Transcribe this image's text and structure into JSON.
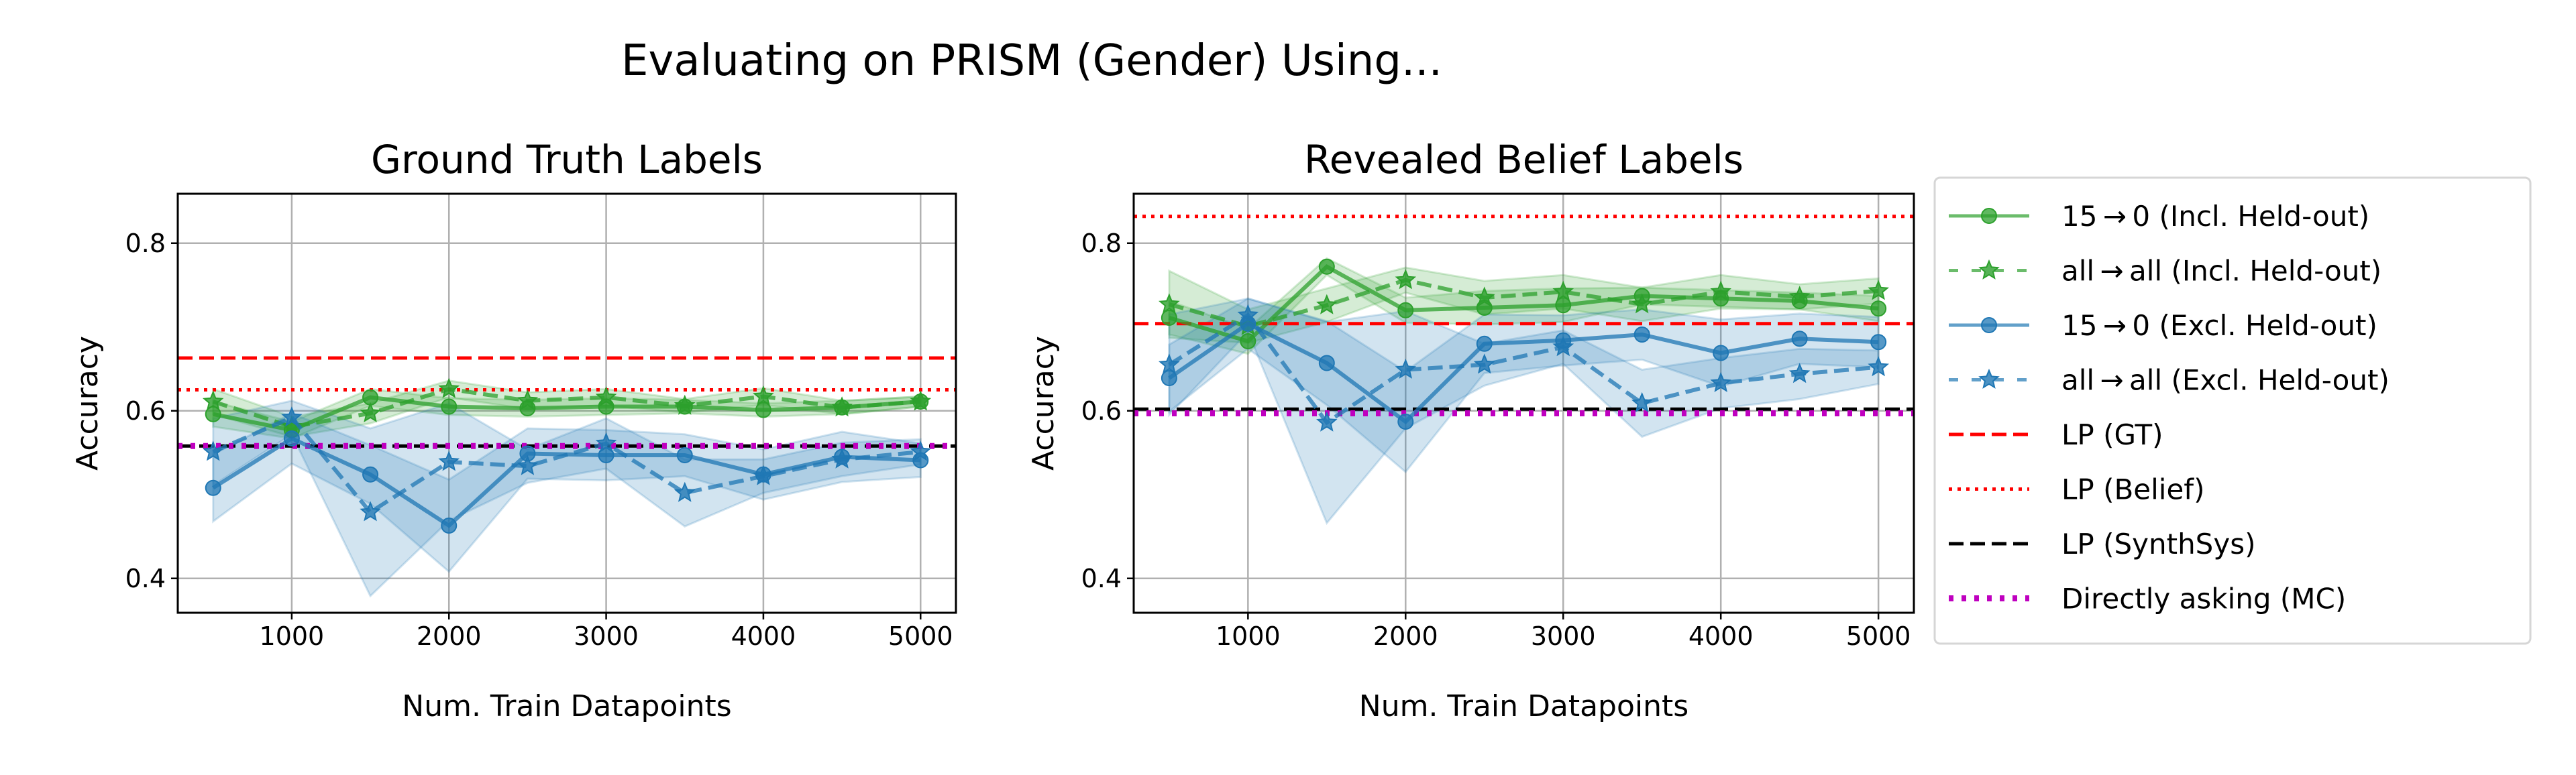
{
  "figure": {
    "suptitle": "Evaluating on PRISM (Gender) Using..."
  },
  "colors": {
    "green": "#2ca02c",
    "blue": "#1f77b4",
    "red": "#ff0000",
    "black": "#000000",
    "magenta": "#bf00bf",
    "grid": "#b0b0b0"
  },
  "legend": {
    "placement": "right-outside",
    "entries": [
      {
        "label": "15 → 0 (Incl. Held-out)",
        "color": "#2ca02c",
        "style": "solid",
        "marker": "circle"
      },
      {
        "label": "all → all (Incl. Held-out)",
        "color": "#2ca02c",
        "style": "dashed",
        "marker": "star"
      },
      {
        "label": "15 → 0 (Excl. Held-out)",
        "color": "#1f77b4",
        "style": "solid",
        "marker": "circle"
      },
      {
        "label": "all → all (Excl. Held-out)",
        "color": "#1f77b4",
        "style": "dashed",
        "marker": "star"
      },
      {
        "label": "LP (GT)",
        "color": "#ff0000",
        "style": "dashed",
        "marker": "none"
      },
      {
        "label": "LP (Belief)",
        "color": "#ff0000",
        "style": "dotted",
        "marker": "none"
      },
      {
        "label": "LP (SynthSys)",
        "color": "#000000",
        "style": "dashed",
        "marker": "none"
      },
      {
        "label": "Directly asking (MC)",
        "color": "#bf00bf",
        "style": "dotted-thick",
        "marker": "none"
      }
    ]
  },
  "chart_data": [
    {
      "type": "line",
      "title": "Ground Truth Labels",
      "xlabel": "Num. Train Datapoints",
      "ylabel": "Accuracy",
      "xlim": [
        275,
        5225
      ],
      "ylim": [
        0.359,
        0.859
      ],
      "xticks": [
        1000,
        2000,
        3000,
        4000,
        5000
      ],
      "yticks": [
        0.4,
        0.6,
        0.8
      ],
      "ytick_labels": [
        "0.4",
        "0.6",
        "0.8"
      ],
      "grid": true,
      "x": [
        500,
        1000,
        1500,
        2000,
        2500,
        3000,
        3500,
        4000,
        4500,
        5000
      ],
      "series": [
        {
          "name": "15 → 0 (Incl. Held-out)",
          "values": [
            0.596,
            0.577,
            0.616,
            0.605,
            0.603,
            0.605,
            0.605,
            0.601,
            0.604,
            0.611
          ],
          "err": [
            0.015,
            0.01,
            0.01,
            0.01,
            0.01,
            0.01,
            0.008,
            0.008,
            0.008,
            0.006
          ]
        },
        {
          "name": "all → all (Incl. Held-out)",
          "values": [
            0.611,
            0.581,
            0.597,
            0.626,
            0.612,
            0.616,
            0.606,
            0.617,
            0.604,
            0.611
          ],
          "err": [
            0.015,
            0.012,
            0.012,
            0.01,
            0.01,
            0.01,
            0.008,
            0.01,
            0.008,
            0.006
          ]
        },
        {
          "name": "15 → 0 (Excl. Held-out)",
          "values": [
            0.508,
            0.567,
            0.524,
            0.463,
            0.549,
            0.547,
            0.547,
            0.524,
            0.545,
            0.541
          ],
          "err": [
            0.04,
            0.03,
            0.035,
            0.055,
            0.03,
            0.03,
            0.025,
            0.03,
            0.03,
            0.02
          ]
        },
        {
          "name": "all → all (Excl. Held-out)",
          "values": [
            0.551,
            0.592,
            0.479,
            0.539,
            0.534,
            0.561,
            0.502,
            0.522,
            0.542,
            0.551
          ],
          "err": [
            0.04,
            0.02,
            0.1,
            0.07,
            0.02,
            0.03,
            0.04,
            0.02,
            0.02,
            0.015
          ]
        }
      ],
      "hlines": [
        {
          "name": "LP (GT)",
          "value": 0.663
        },
        {
          "name": "LP (Belief)",
          "value": 0.625
        },
        {
          "name": "LP (SynthSys)",
          "value": 0.558
        },
        {
          "name": "Directly asking (MC)",
          "value": 0.558
        }
      ]
    },
    {
      "type": "line",
      "title": "Revealed Belief Labels",
      "xlabel": "Num. Train Datapoints",
      "ylabel": "Accuracy",
      "xlim": [
        275,
        5225
      ],
      "ylim": [
        0.359,
        0.859
      ],
      "xticks": [
        1000,
        2000,
        3000,
        4000,
        5000
      ],
      "yticks": [
        0.4,
        0.6,
        0.8
      ],
      "ytick_labels": [
        "0.4",
        "0.6",
        "0.8"
      ],
      "grid": true,
      "x": [
        500,
        1000,
        1500,
        2000,
        2500,
        3000,
        3500,
        4000,
        4500,
        5000
      ],
      "series": [
        {
          "name": "15 → 0 (Incl. Held-out)",
          "values": [
            0.711,
            0.683,
            0.772,
            0.72,
            0.723,
            0.726,
            0.737,
            0.734,
            0.731,
            0.722
          ],
          "err": [
            0.02,
            0.015,
            0.01,
            0.015,
            0.02,
            0.02,
            0.01,
            0.01,
            0.01,
            0.015
          ]
        },
        {
          "name": "all → all (Incl. Held-out)",
          "values": [
            0.727,
            0.701,
            0.726,
            0.756,
            0.735,
            0.742,
            0.727,
            0.742,
            0.736,
            0.743
          ],
          "err": [
            0.04,
            0.02,
            0.02,
            0.015,
            0.02,
            0.02,
            0.02,
            0.02,
            0.015,
            0.015
          ]
        },
        {
          "name": "15 → 0 (Excl. Held-out)",
          "values": [
            0.639,
            0.704,
            0.657,
            0.587,
            0.68,
            0.684,
            0.691,
            0.669,
            0.686,
            0.682
          ],
          "err": [
            0.04,
            0.03,
            0.05,
            0.06,
            0.035,
            0.03,
            0.03,
            0.04,
            0.03,
            0.03
          ]
        },
        {
          "name": "all → all (Excl. Held-out)",
          "values": [
            0.655,
            0.714,
            0.586,
            0.649,
            0.655,
            0.676,
            0.609,
            0.633,
            0.644,
            0.652
          ],
          "err": [
            0.06,
            0.02,
            0.12,
            0.07,
            0.025,
            0.02,
            0.04,
            0.03,
            0.03,
            0.02
          ]
        }
      ],
      "hlines": [
        {
          "name": "LP (GT)",
          "value": 0.704
        },
        {
          "name": "LP (Belief)",
          "value": 0.832
        },
        {
          "name": "LP (SynthSys)",
          "value": 0.602
        },
        {
          "name": "Directly asking (MC)",
          "value": 0.597
        }
      ]
    }
  ]
}
